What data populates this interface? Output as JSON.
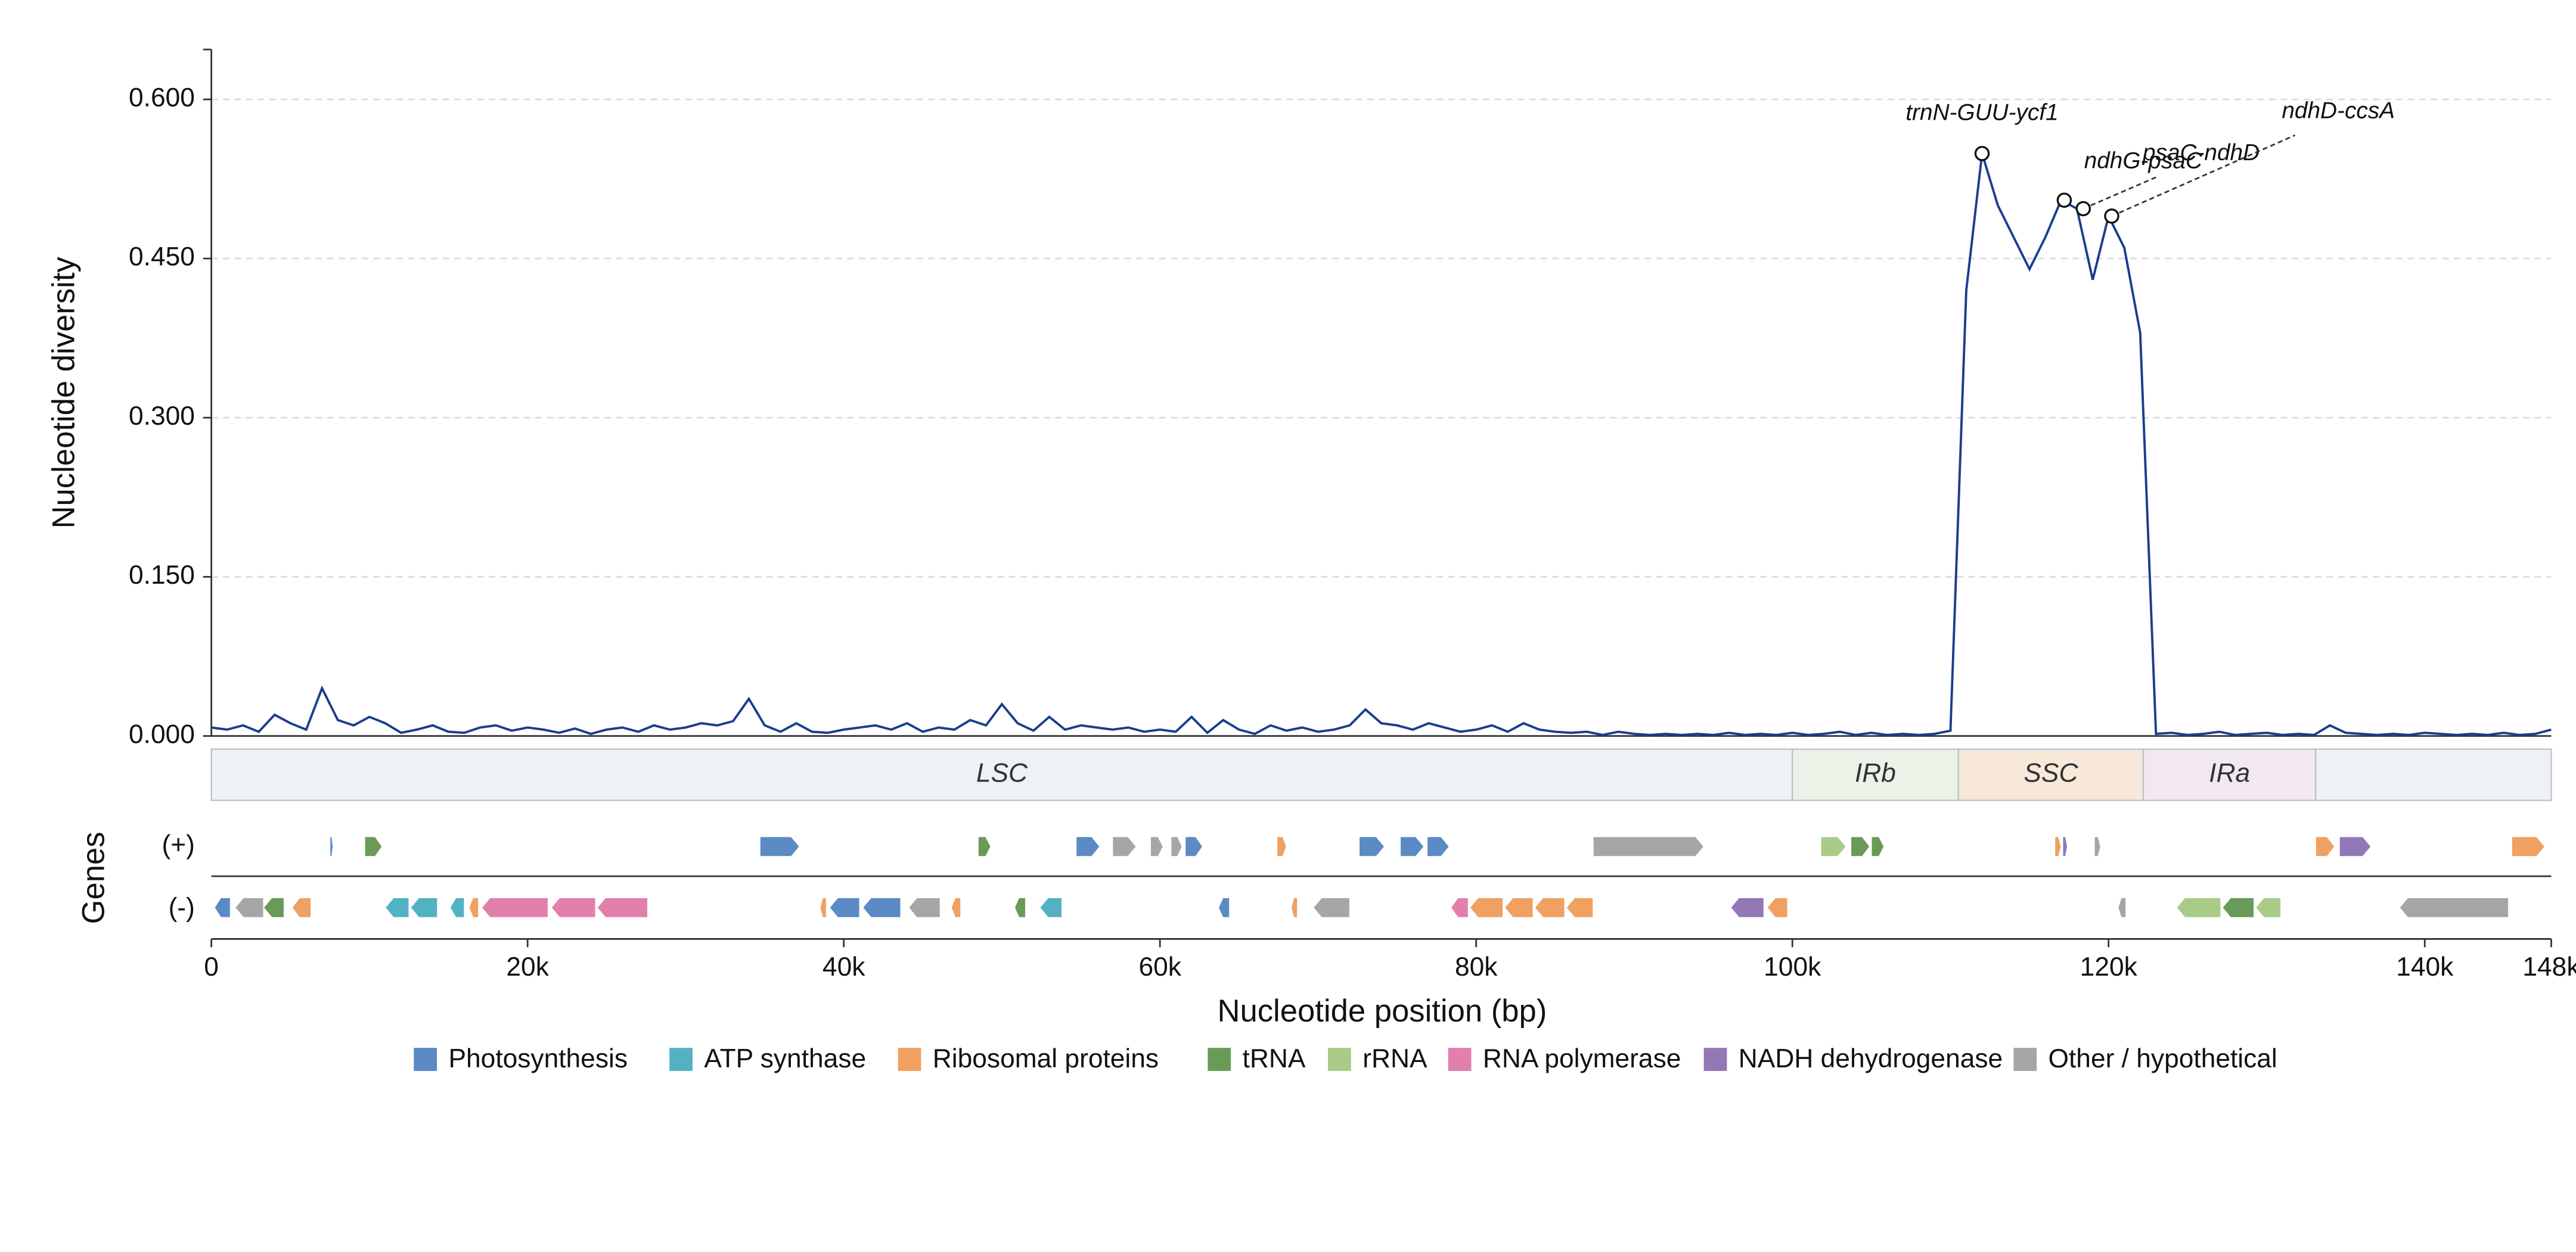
{
  "chart_data": {
    "type": "line",
    "ylabel": "Nucleotide diversity",
    "xlabel": "Nucleotide position (bp)",
    "color": "#1a3d8f",
    "grid": true,
    "ylim": [
      0,
      0.647
    ],
    "yticks": [
      {
        "value": 0,
        "label": "0.000"
      },
      {
        "value": 0.15,
        "label": "0.150"
      },
      {
        "value": 0.3,
        "label": "0.300"
      },
      {
        "value": 0.45,
        "label": "0.450"
      },
      {
        "value": 0.6,
        "label": "0.600"
      }
    ],
    "xlim": [
      0,
      148000
    ],
    "xticks": [
      0,
      {
        "value": 20000,
        "label": "20k"
      },
      {
        "value": 40000,
        "label": "40k"
      },
      {
        "value": 60000,
        "label": "60k"
      },
      {
        "value": 80000,
        "label": "80k"
      },
      {
        "value": 100000,
        "label": "100k"
      },
      {
        "value": 120000,
        "label": "120k"
      },
      {
        "value": 140000,
        "label": "140k"
      },
      {
        "value": 148000,
        "label": "148k"
      }
    ],
    "x": [
      0,
      1000,
      2000,
      3000,
      4000,
      5000,
      6000,
      7000,
      8000,
      9000,
      10000,
      11000,
      12000,
      13000,
      14000,
      15000,
      16000,
      17000,
      18000,
      19000,
      20000,
      21000,
      22000,
      23000,
      24000,
      25000,
      26000,
      27000,
      28000,
      29000,
      30000,
      31000,
      32000,
      33000,
      34000,
      35000,
      36000,
      37000,
      38000,
      39000,
      40000,
      41000,
      42000,
      43000,
      44000,
      45000,
      46000,
      47000,
      48000,
      49000,
      50000,
      51000,
      52000,
      53000,
      54000,
      55000,
      56000,
      57000,
      58000,
      59000,
      60000,
      61000,
      62000,
      63000,
      64000,
      65000,
      66000,
      67000,
      68000,
      69000,
      70000,
      71000,
      72000,
      73000,
      74000,
      75000,
      76000,
      77000,
      78000,
      79000,
      80000,
      81000,
      82000,
      83000,
      84000,
      85000,
      86000,
      87000,
      88000,
      89000,
      90000,
      91000,
      92000,
      93000,
      94000,
      95000,
      96000,
      97000,
      98000,
      99000,
      100000,
      101000,
      102000,
      103000,
      104000,
      105000,
      106000,
      107000,
      108000,
      109000,
      110000,
      111000,
      112000,
      113000,
      114000,
      115000,
      116000,
      117000,
      118000,
      119000,
      120000,
      121000,
      122000,
      123000,
      124000,
      125000,
      126000,
      127000,
      128000,
      129000,
      130000,
      131000,
      132000,
      133000,
      134000,
      135000,
      136000,
      137000,
      138000,
      139000,
      140000,
      141000,
      142000,
      143000,
      144000,
      145000,
      146000,
      147000,
      148000
    ],
    "values": [
      0.008,
      0.006,
      0.01,
      0.004,
      0.02,
      0.012,
      0.006,
      0.045,
      0.015,
      0.01,
      0.018,
      0.012,
      0.003,
      0.006,
      0.01,
      0.004,
      0.003,
      0.008,
      0.01,
      0.005,
      0.008,
      0.006,
      0.003,
      0.007,
      0.002,
      0.006,
      0.008,
      0.004,
      0.01,
      0.006,
      0.008,
      0.012,
      0.01,
      0.014,
      0.035,
      0.01,
      0.004,
      0.012,
      0.004,
      0.003,
      0.006,
      0.008,
      0.01,
      0.006,
      0.012,
      0.004,
      0.008,
      0.006,
      0.015,
      0.01,
      0.03,
      0.012,
      0.005,
      0.018,
      0.006,
      0.01,
      0.008,
      0.006,
      0.008,
      0.004,
      0.006,
      0.004,
      0.018,
      0.003,
      0.015,
      0.006,
      0.002,
      0.01,
      0.005,
      0.008,
      0.004,
      0.006,
      0.01,
      0.025,
      0.012,
      0.01,
      0.006,
      0.012,
      0.008,
      0.004,
      0.006,
      0.01,
      0.004,
      0.012,
      0.006,
      0.004,
      0.003,
      0.004,
      0.001,
      0.004,
      0.002,
      0.001,
      0.002,
      0.001,
      0.002,
      0.001,
      0.003,
      0.001,
      0.002,
      0.001,
      0.003,
      0.001,
      0.002,
      0.004,
      0.001,
      0.003,
      0.001,
      0.002,
      0.001,
      0.002,
      0.005,
      0.42,
      0.549,
      0.5,
      0.47,
      0.44,
      0.47,
      0.505,
      0.497,
      0.43,
      0.49,
      0.46,
      0.38,
      0.002,
      0.003,
      0.001,
      0.002,
      0.004,
      0.001,
      0.002,
      0.003,
      0.001,
      0.002,
      0.001,
      0.01,
      0.003,
      0.002,
      0.001,
      0.002,
      0.001,
      0.003,
      0.002,
      0.001,
      0.002,
      0.001,
      0.003,
      0.001,
      0.002,
      0.006
    ],
    "annotations": [
      {
        "text": "trnN-GUU-ycf1",
        "x": 112000,
        "y": 0.549
      },
      {
        "text": "ndhG-psaC",
        "x": 117200,
        "y": 0.505
      },
      {
        "text": "psaC-ndhD",
        "x": 118400,
        "y": 0.497
      },
      {
        "text": "ndhD-ccsA",
        "x": 120200,
        "y": 0.49
      }
    ],
    "regions": [
      {
        "name": "LSC",
        "start": 0,
        "end": 100000,
        "color": "#eef2f5"
      },
      {
        "name": "IRb",
        "start": 100000,
        "end": 110500,
        "color": "#ebf2e8"
      },
      {
        "name": "SSC",
        "start": 110500,
        "end": 122200,
        "color": "#f8e8da"
      },
      {
        "name": "IRa",
        "start": 122200,
        "end": 133100,
        "color": "#f2e8f0"
      },
      {
        "name": null,
        "start": 133100,
        "end": 148000,
        "color": "#eef2f5"
      }
    ],
    "gene_track_label": "Genes",
    "strand_labels": [
      "(+)",
      "(-)"
    ],
    "categories": [
      {
        "name": "Photosynthesis",
        "color": "#5b8ac4"
      },
      {
        "name": "ATP synthase",
        "color": "#52b2c4"
      },
      {
        "name": "Ribosomal proteins",
        "color": "#f0a060"
      },
      {
        "name": "tRNA",
        "color": "#6a9a58"
      },
      {
        "name": "rRNA",
        "color": "#a9cb88"
      },
      {
        "name": "RNA polymerase",
        "color": "#e27fad"
      },
      {
        "name": "NADH dehydrogenase",
        "color": "#9278b6"
      },
      {
        "name": "Other / hypothetical",
        "color": "#a6a6a6"
      }
    ],
    "genes": [
      {
        "start": 7500,
        "end": 7700,
        "strand": "+",
        "category": 0
      },
      {
        "start": 9700,
        "end": 10800,
        "strand": "+",
        "category": 3
      },
      {
        "start": 34700,
        "end": 37200,
        "strand": "+",
        "category": 0
      },
      {
        "start": 48500,
        "end": 49300,
        "strand": "+",
        "category": 3
      },
      {
        "start": 54700,
        "end": 56200,
        "strand": "+",
        "category": 0
      },
      {
        "start": 57000,
        "end": 58500,
        "strand": "+",
        "category": 7
      },
      {
        "start": 59400,
        "end": 60200,
        "strand": "+",
        "category": 7
      },
      {
        "start": 60700,
        "end": 61400,
        "strand": "+",
        "category": 7
      },
      {
        "start": 61600,
        "end": 62700,
        "strand": "+",
        "category": 0
      },
      {
        "start": 67400,
        "end": 68000,
        "strand": "+",
        "category": 2
      },
      {
        "start": 72600,
        "end": 74200,
        "strand": "+",
        "category": 0
      },
      {
        "start": 75200,
        "end": 76700,
        "strand": "+",
        "category": 0
      },
      {
        "start": 76900,
        "end": 78300,
        "strand": "+",
        "category": 0
      },
      {
        "start": 87400,
        "end": 94400,
        "strand": "+",
        "category": 7
      },
      {
        "start": 101800,
        "end": 103400,
        "strand": "+",
        "category": 4
      },
      {
        "start": 103700,
        "end": 104900,
        "strand": "+",
        "category": 3
      },
      {
        "start": 105000,
        "end": 105800,
        "strand": "+",
        "category": 3
      },
      {
        "start": 116600,
        "end": 117000,
        "strand": "+",
        "category": 2
      },
      {
        "start": 117100,
        "end": 117400,
        "strand": "+",
        "category": 6
      },
      {
        "start": 119100,
        "end": 119500,
        "strand": "+",
        "category": 7
      },
      {
        "start": 133100,
        "end": 134300,
        "strand": "+",
        "category": 2
      },
      {
        "start": 134600,
        "end": 136600,
        "strand": "+",
        "category": 6
      },
      {
        "start": 145500,
        "end": 147600,
        "strand": "+",
        "category": 2
      },
      {
        "start": 200,
        "end": 1200,
        "strand": "-",
        "category": 0
      },
      {
        "start": 1500,
        "end": 3300,
        "strand": "-",
        "category": 7
      },
      {
        "start": 3300,
        "end": 4600,
        "strand": "-",
        "category": 3
      },
      {
        "start": 5100,
        "end": 6300,
        "strand": "-",
        "category": 2
      },
      {
        "start": 11000,
        "end": 12500,
        "strand": "-",
        "category": 1
      },
      {
        "start": 12600,
        "end": 14300,
        "strand": "-",
        "category": 1
      },
      {
        "start": 15100,
        "end": 16000,
        "strand": "-",
        "category": 1
      },
      {
        "start": 16300,
        "end": 16900,
        "strand": "-",
        "category": 2
      },
      {
        "start": 17100,
        "end": 21300,
        "strand": "-",
        "category": 5
      },
      {
        "start": 21500,
        "end": 24300,
        "strand": "-",
        "category": 5
      },
      {
        "start": 24400,
        "end": 27600,
        "strand": "-",
        "category": 5
      },
      {
        "start": 38500,
        "end": 38900,
        "strand": "-",
        "category": 2
      },
      {
        "start": 39100,
        "end": 41000,
        "strand": "-",
        "category": 0
      },
      {
        "start": 41200,
        "end": 43600,
        "strand": "-",
        "category": 0
      },
      {
        "start": 44100,
        "end": 46100,
        "strand": "-",
        "category": 7
      },
      {
        "start": 46800,
        "end": 47400,
        "strand": "-",
        "category": 2
      },
      {
        "start": 50800,
        "end": 51500,
        "strand": "-",
        "category": 3
      },
      {
        "start": 52400,
        "end": 53800,
        "strand": "-",
        "category": 1
      },
      {
        "start": 63700,
        "end": 64400,
        "strand": "-",
        "category": 0
      },
      {
        "start": 68300,
        "end": 68700,
        "strand": "-",
        "category": 2
      },
      {
        "start": 69700,
        "end": 72000,
        "strand": "-",
        "category": 7
      },
      {
        "start": 78400,
        "end": 79500,
        "strand": "-",
        "category": 5
      },
      {
        "start": 79600,
        "end": 81700,
        "strand": "-",
        "category": 2
      },
      {
        "start": 81800,
        "end": 83600,
        "strand": "-",
        "category": 2
      },
      {
        "start": 83700,
        "end": 85600,
        "strand": "-",
        "category": 2
      },
      {
        "start": 85700,
        "end": 87400,
        "strand": "-",
        "category": 2
      },
      {
        "start": 96100,
        "end": 98200,
        "strand": "-",
        "category": 6
      },
      {
        "start": 98400,
        "end": 99700,
        "strand": "-",
        "category": 2
      },
      {
        "start": 120600,
        "end": 121100,
        "strand": "-",
        "category": 7
      },
      {
        "start": 124300,
        "end": 127100,
        "strand": "-",
        "category": 4
      },
      {
        "start": 127200,
        "end": 129200,
        "strand": "-",
        "category": 3
      },
      {
        "start": 129300,
        "end": 130900,
        "strand": "-",
        "category": 4
      },
      {
        "start": 138400,
        "end": 145300,
        "strand": "-",
        "category": 7
      }
    ]
  }
}
